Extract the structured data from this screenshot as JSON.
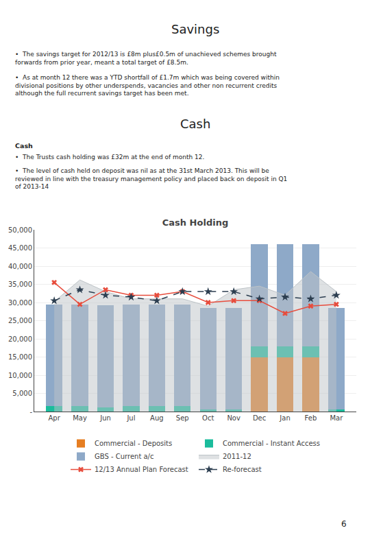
{
  "chart_data": {
    "type": "bar",
    "stacked": true,
    "title": "Cash Holding",
    "annotations": [
      "Savings",
      "•  The savings target for 2012/13 is £8m plus£0.5m of unachieved schemes brought\nforwards from prior year, meant a total target of £8.5m.",
      "•  As at month 12 there was a YTD shortfall of £1.7m which was being covered within\ndivisional positions by other underspends, vacancies and other non recurrent credits\nalthough the full recurrent savings target has been met.",
      "Cash",
      "Cash",
      "•  The Trusts cash holding was £32m at the end of month 12.",
      "•  The level of cash held on deposit was nil as at the 31st March 2013. This will be\nreviewed in line with the treasury management policy and placed back on deposit in Q1\nof 2013-14",
      "6"
    ],
    "categories": [
      "Apr",
      "May",
      "Jun",
      "Jul",
      "Aug",
      "Sep",
      "Oct",
      "Nov",
      "Dec",
      "Jan",
      "Feb",
      "Mar"
    ],
    "series": [
      {
        "name": "Commercial - Deposits",
        "type": "bar",
        "color": "#e67e22",
        "values": [
          0,
          0,
          0,
          0,
          0,
          0,
          0,
          0,
          15000,
          15000,
          15000,
          0
        ]
      },
      {
        "name": "Commercial - Instant Access",
        "type": "bar",
        "color": "#1abc9c",
        "values": [
          1500,
          1500,
          1200,
          1500,
          1500,
          1500,
          500,
          500,
          3000,
          3000,
          3000,
          500
        ]
      },
      {
        "name": "GBS - Current a/c",
        "type": "bar",
        "color": "#8ea9c8",
        "values": [
          28000,
          28000,
          28000,
          28000,
          28000,
          28000,
          28000,
          28000,
          28000,
          28000,
          28000,
          28000
        ]
      },
      {
        "name": "2011-12",
        "type": "area",
        "color": "#bdc3c7",
        "values": [
          30200,
          36200,
          33000,
          31000,
          31000,
          31000,
          29000,
          33500,
          34500,
          32000,
          38500,
          33000
        ]
      },
      {
        "name": "12/13 Annual Plan Forecast",
        "type": "line",
        "color": "#e74c3c",
        "marker": "x",
        "line_style": "solid",
        "values": [
          35500,
          29500,
          33500,
          32000,
          32000,
          33000,
          30000,
          30500,
          30500,
          27000,
          29000,
          29500
        ]
      },
      {
        "name": "Re-forecast",
        "type": "line",
        "color": "#2c3e50",
        "marker": "star",
        "line_style": "dashed",
        "values": [
          30500,
          33500,
          32000,
          31500,
          30500,
          33000,
          33000,
          33000,
          31000,
          31500,
          31000,
          32000
        ]
      }
    ],
    "ylim": [
      0,
      50000
    ],
    "yticks": [
      {
        "value": 0,
        "label": "-"
      },
      {
        "value": 5000,
        "label": "5,000"
      },
      {
        "value": 10000,
        "label": "10,000"
      },
      {
        "value": 15000,
        "label": "15,000"
      },
      {
        "value": 20000,
        "label": "20,000"
      },
      {
        "value": 25000,
        "label": "25,000"
      },
      {
        "value": 30000,
        "label": "30,000"
      },
      {
        "value": 35000,
        "label": "35,000"
      },
      {
        "value": 40000,
        "label": "40,000"
      },
      {
        "value": 45000,
        "label": "45,000"
      },
      {
        "value": 50000,
        "label": "50,000"
      }
    ],
    "grid": true,
    "legend": "bottom"
  }
}
